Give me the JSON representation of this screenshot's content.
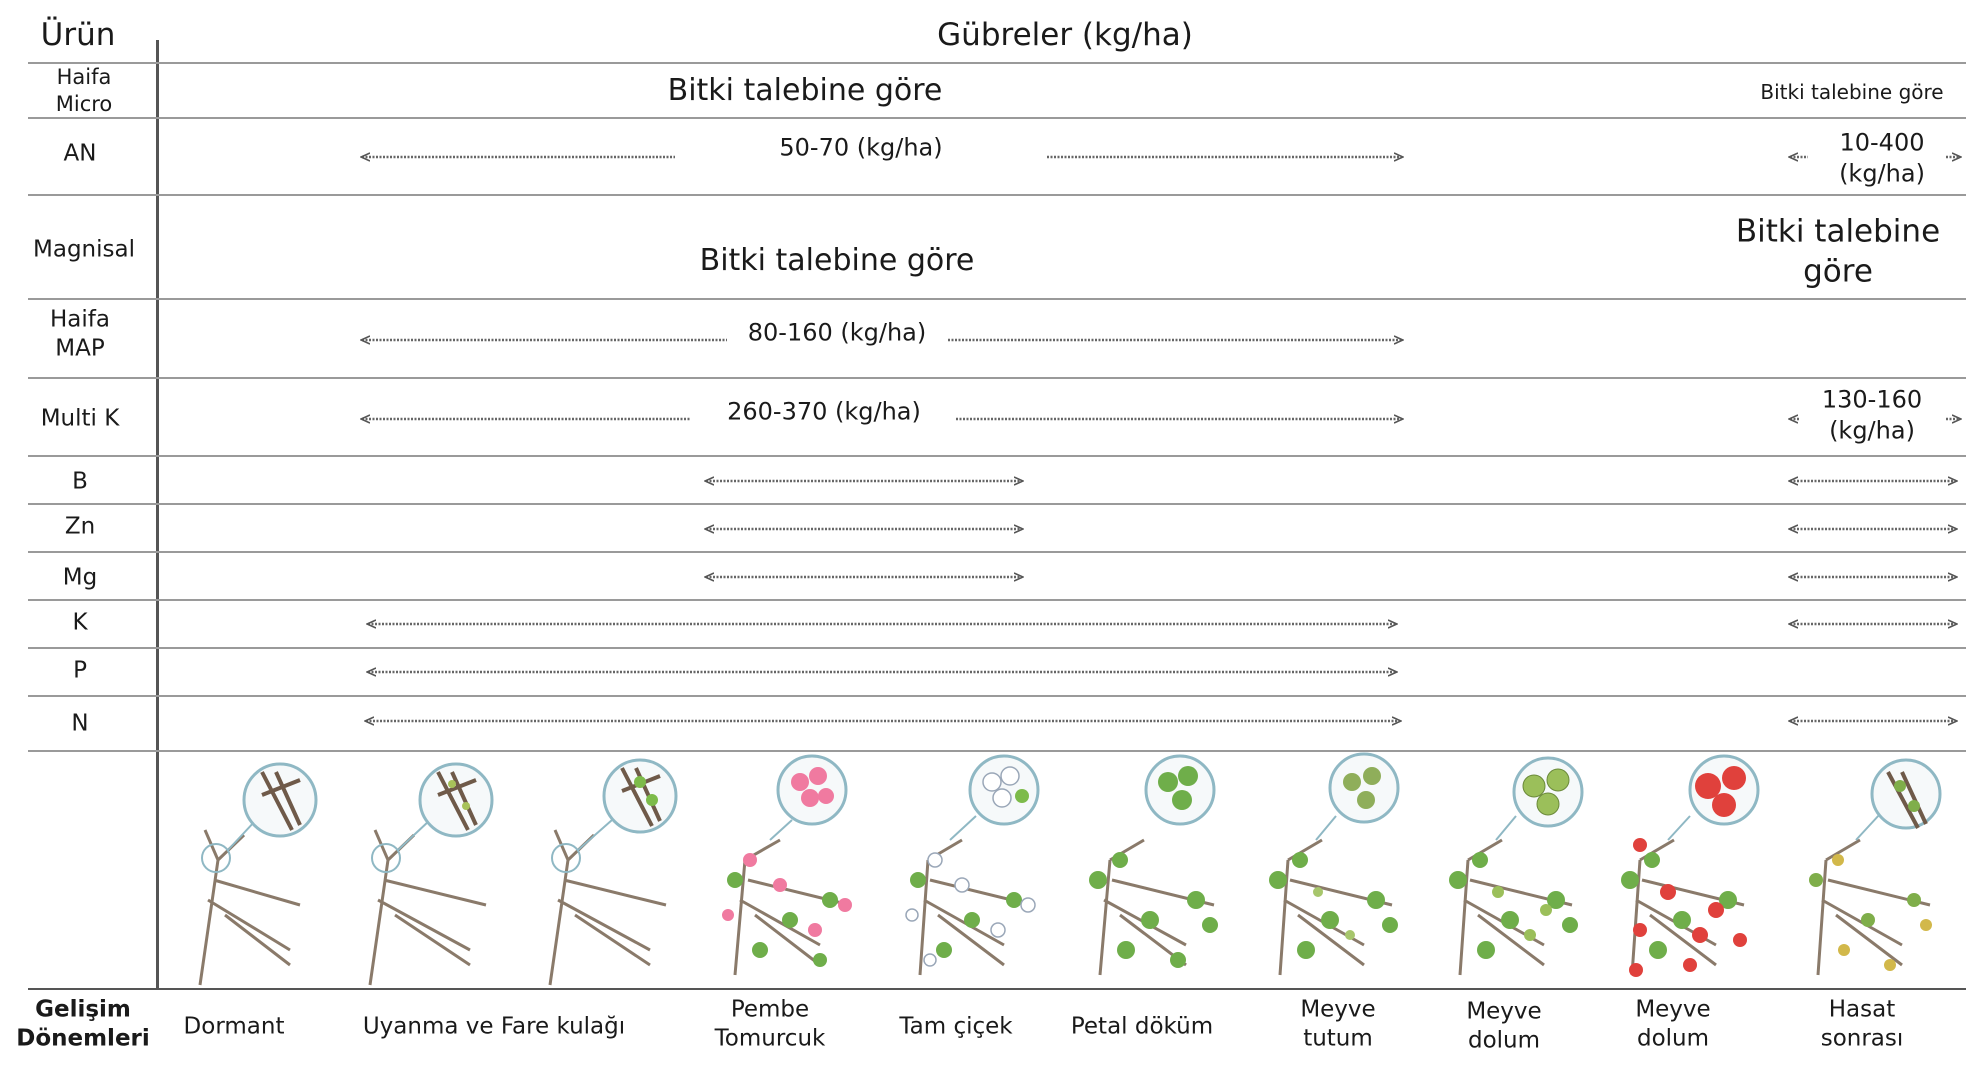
{
  "header": {
    "product_col": "Ürün",
    "fertilizer_col": "Gübreler (kg/ha)"
  },
  "rows": [
    {
      "product": "Haifa\nMicro",
      "main_note": "Bitki talebine göre",
      "post_note": "Bitki talebine göre"
    },
    {
      "product": "AN",
      "main_note": "50-70 (kg/ha)",
      "post_note": "10-400\n(kg/ha)"
    },
    {
      "product": "Magnisal",
      "main_note": "Bitki talebine göre",
      "post_note": "Bitki talebine\ngöre"
    },
    {
      "product": "Haifa\nMAP",
      "main_note": "80-160 (kg/ha)"
    },
    {
      "product": "Multi K",
      "main_note": "260-370 (kg/ha)",
      "post_note": "130-160\n(kg/ha)"
    },
    {
      "product": "B"
    },
    {
      "product": "Zn"
    },
    {
      "product": "Mg"
    },
    {
      "product": "K"
    },
    {
      "product": "P"
    },
    {
      "product": "N"
    }
  ],
  "stages_label": "Gelişim\nDönemleri",
  "stages": [
    {
      "name": "Dormant",
      "icon": "dormant-branch"
    },
    {
      "name": "Uyanma ve Fare kulağı",
      "icon": "bud-break-branch"
    },
    {
      "name": "Pembe\nTomurcuk",
      "icon": "pink-bud-branch"
    },
    {
      "name": "Tam çiçek",
      "icon": "full-bloom-branch"
    },
    {
      "name": "Petal döküm",
      "icon": "petal-fall-branch"
    },
    {
      "name": "Meyve\ntutum",
      "icon": "fruit-set-branch"
    },
    {
      "name": "Meyve\ndolum",
      "icon": "green-fruit-branch"
    },
    {
      "name": "Meyve\ndolum",
      "icon": "red-fruit-branch"
    },
    {
      "name": "Hasat\nsonrası",
      "icon": "post-harvest-branch"
    }
  ],
  "colors": {
    "branch": "#8a7a6a",
    "leaf": "#6fae4a",
    "pink_blossom": "#f07aa0",
    "white_blossom": "#f4f4f4",
    "green_fruit": "#9bbf5a",
    "red_fruit": "#e0413c",
    "circle_ring": "#8fb8c4"
  }
}
